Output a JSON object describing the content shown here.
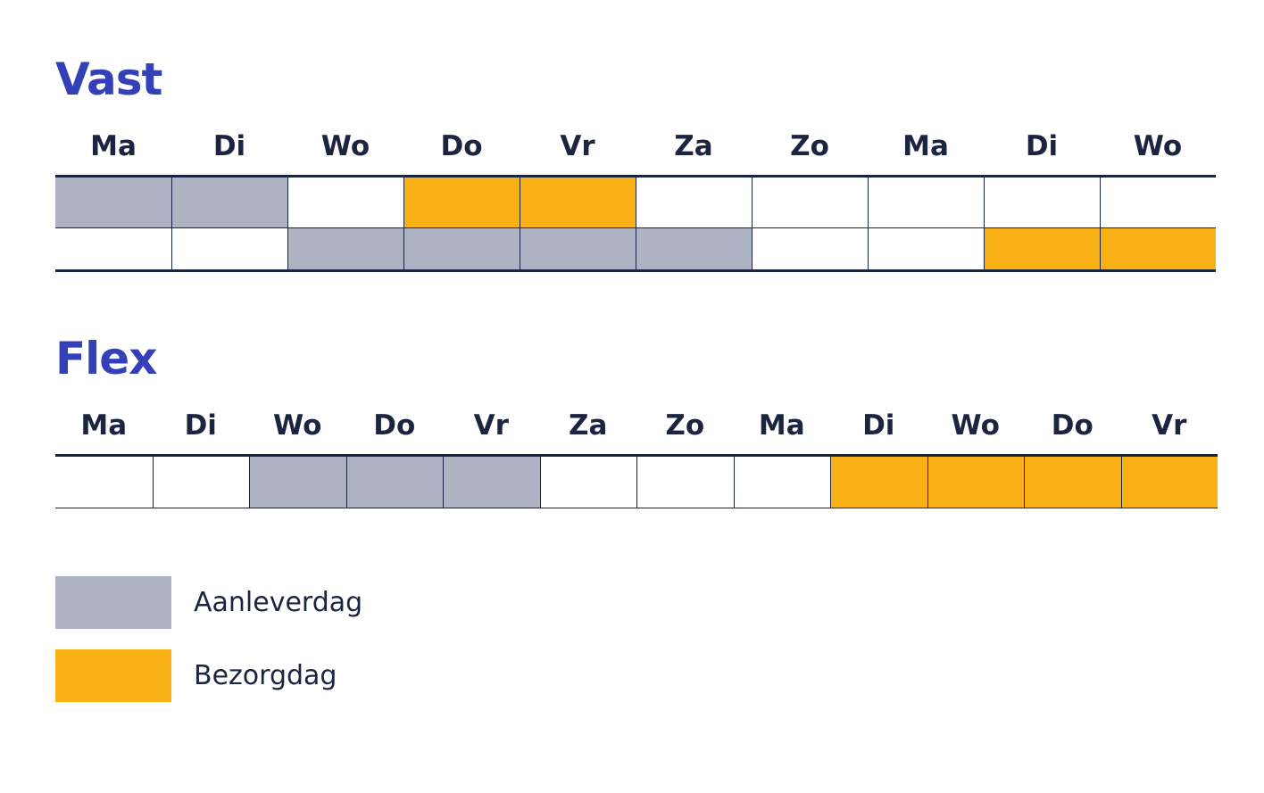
{
  "vast": {
    "title": "Vast",
    "days": [
      "Ma",
      "Di",
      "Wo",
      "Do",
      "Vr",
      "Za",
      "Zo",
      "Ma",
      "Di",
      "Wo"
    ],
    "rows": [
      [
        "aanlever",
        "aanlever",
        "leeg",
        "bezorg",
        "bezorg",
        "leeg",
        "leeg",
        "leeg",
        "leeg",
        "leeg"
      ],
      [
        "leeg",
        "leeg",
        "aanlever",
        "aanlever",
        "aanlever",
        "aanlever",
        "leeg",
        "leeg",
        "bezorg",
        "bezorg"
      ]
    ]
  },
  "flex": {
    "title": "Flex",
    "days": [
      "Ma",
      "Di",
      "Wo",
      "Do",
      "Vr",
      "Za",
      "Zo",
      "Ma",
      "Di",
      "Wo",
      "Do",
      "Vr"
    ],
    "rows": [
      [
        "leeg",
        "leeg",
        "aanlever",
        "aanlever",
        "aanlever",
        "leeg",
        "leeg",
        "leeg",
        "bezorg",
        "bezorg",
        "bezorg",
        "bezorg"
      ]
    ]
  },
  "legend": {
    "aanlever_label": "Aanleverdag",
    "bezorg_label": "Bezorgdag"
  },
  "colors": {
    "title": "#3340b8",
    "text": "#1b2440",
    "aanlever": "#adb3c3",
    "bezorg": "#f9b116"
  }
}
